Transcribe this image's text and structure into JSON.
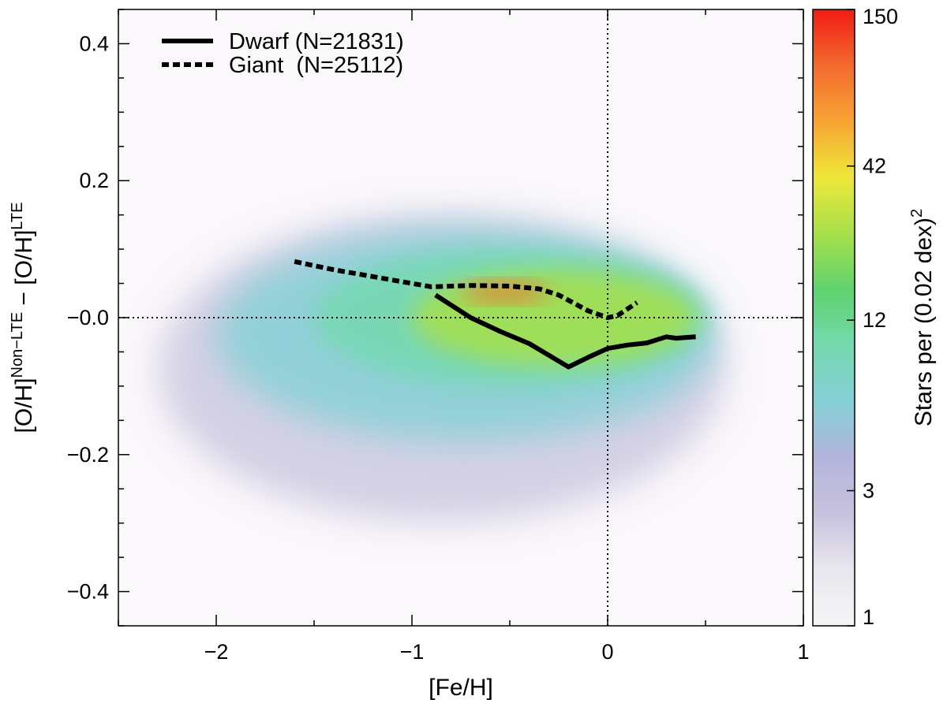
{
  "chart_data": {
    "type": "heatmap",
    "title": "",
    "xlabel": "[Fe/H]",
    "ylabel": {
      "parts": [
        "[O/H]",
        "Non−LTE",
        " − [O/H]",
        "LTE"
      ],
      "text": "[O/H]^Non−LTE − [O/H]^LTE"
    },
    "xlim": [
      -2.5,
      1.0
    ],
    "ylim": [
      -0.45,
      0.45
    ],
    "xticks": [
      -2,
      -1,
      0,
      1
    ],
    "xtick_labels": [
      "−2",
      "−1",
      "0",
      "1"
    ],
    "yticks": [
      0.4,
      0.2,
      0.0,
      -0.2,
      -0.4
    ],
    "ytick_labels": [
      "0.4",
      "0.2",
      "−0.0",
      "−0.2",
      "−0.4"
    ],
    "reference_lines": {
      "x": 0,
      "y": 0,
      "style": "dotted"
    },
    "series": [
      {
        "name": "Dwarf",
        "legend_label": "Dwarf (N=21831)",
        "style": "solid",
        "x": [
          -0.88,
          -0.7,
          -0.55,
          -0.4,
          -0.3,
          -0.2,
          -0.1,
          0.0,
          0.1,
          0.2,
          0.3,
          0.35,
          0.45
        ],
        "y": [
          0.033,
          0.0,
          -0.02,
          -0.038,
          -0.055,
          -0.072,
          -0.058,
          -0.045,
          -0.04,
          -0.037,
          -0.028,
          -0.03,
          -0.028
        ]
      },
      {
        "name": "Giant",
        "legend_label": "Giant  (N=25112)",
        "style": "dotted",
        "x": [
          -1.6,
          -1.4,
          -1.2,
          -1.0,
          -0.9,
          -0.7,
          -0.5,
          -0.35,
          -0.25,
          -0.1,
          0.0,
          0.05,
          0.15
        ],
        "y": [
          0.082,
          0.07,
          0.06,
          0.05,
          0.045,
          0.047,
          0.046,
          0.042,
          0.033,
          0.01,
          0.0,
          0.003,
          0.022
        ]
      }
    ],
    "density_regions": [
      {
        "level": 2,
        "x": [
          -2.3,
          0.6
        ],
        "y": [
          -0.3,
          0.15
        ]
      },
      {
        "level": 5,
        "x": [
          -2.0,
          0.55
        ],
        "y": [
          -0.18,
          0.13
        ]
      },
      {
        "level": 12,
        "x": [
          -1.5,
          0.5
        ],
        "y": [
          -0.1,
          0.1
        ]
      },
      {
        "level": 30,
        "x": [
          -1.0,
          0.45
        ],
        "y": [
          -0.07,
          0.07
        ]
      },
      {
        "level": 100,
        "x": [
          -0.75,
          -0.3
        ],
        "y": [
          0.025,
          0.05
        ]
      }
    ],
    "colorbar": {
      "label": "Stars per (0.02 dex)",
      "label_superscript": "2",
      "ticks": [
        150,
        42,
        12,
        3,
        1
      ],
      "tick_labels": [
        "150",
        "42",
        "12",
        "3",
        "1"
      ],
      "scale": "log",
      "range": [
        1,
        150
      ]
    },
    "colors": {
      "background": "#fbf8fb",
      "frame": "#000000",
      "colorbar_stops": [
        "#f5f5f5",
        "#e9e6ee",
        "#c8c3de",
        "#b2b4dc",
        "#86d0d6",
        "#74d9b0",
        "#5fd26e",
        "#a6e04a",
        "#eee83a",
        "#f7a434",
        "#f36a2e",
        "#f01c14"
      ]
    }
  }
}
